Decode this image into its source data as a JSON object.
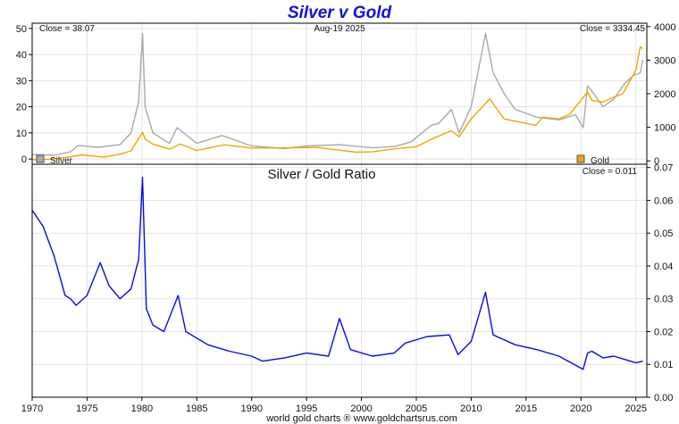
{
  "chart_data": [
    {
      "type": "line",
      "title": "Silver v Gold",
      "date_label": "Aug-19  2025",
      "left_close": "Close = 38.07",
      "right_close": "Close = 3334.45",
      "x_axis": {
        "range": [
          1970,
          2026
        ],
        "ticks": [
          "1970",
          "1975",
          "1980",
          "1985",
          "1990",
          "1995",
          "2000",
          "2005",
          "2010",
          "2015",
          "2020",
          "2025"
        ]
      },
      "y_left": {
        "range": [
          -2,
          52
        ],
        "ticks": [
          "0",
          "10",
          "20",
          "30",
          "40",
          "50"
        ]
      },
      "y_right": {
        "range": [
          -100,
          4100
        ],
        "ticks": [
          "0",
          "1000",
          "2000",
          "3000",
          "4000"
        ]
      },
      "grid": true,
      "legend": {
        "silver_label": "Silver",
        "silver_placement": "bottom-left",
        "gold_label": "Gold",
        "gold_placement": "bottom-right"
      },
      "series": [
        {
          "name": "Silver",
          "axis": "left",
          "color": "#a9a9a9",
          "x": [
            1970,
            1972,
            1973.5,
            1974.2,
            1976,
            1978,
            1979,
            1979.7,
            1980.05,
            1980.3,
            1981,
            1982.5,
            1983.2,
            1985,
            1987.3,
            1990,
            1993,
            1995,
            1998,
            2001,
            2003,
            2004.5,
            2006.4,
            2007,
            2008.2,
            2008.9,
            2010,
            2011.3,
            2012,
            2013,
            2014,
            2016,
            2018,
            2019.5,
            2020.2,
            2020.6,
            2021,
            2022,
            2023,
            2024,
            2024.8,
            2025.4,
            2025.63
          ],
          "values": [
            1.8,
            1.5,
            2.8,
            5.2,
            4.5,
            5.5,
            10,
            22,
            48,
            20,
            10,
            6,
            12,
            6,
            9,
            5,
            4,
            5,
            5.5,
            4.3,
            4.8,
            6.5,
            13,
            13.5,
            19,
            10,
            20,
            48,
            33,
            25,
            19,
            16,
            15,
            17,
            12,
            28,
            26,
            20,
            23,
            29,
            32,
            33,
            38.07
          ]
        },
        {
          "name": "Gold",
          "axis": "right",
          "color": "#f0a500",
          "x": [
            1970,
            1971,
            1972,
            1973.5,
            1974.5,
            1976.5,
            1978,
            1979,
            1980.05,
            1980.3,
            1981,
            1982.5,
            1983.5,
            1985,
            1987.5,
            1990,
            1996,
            1999.5,
            2001,
            2003,
            2005,
            2006.4,
            2008.2,
            2008.9,
            2010,
            2011.7,
            2012,
            2013,
            2015.9,
            2016.5,
            2018,
            2019,
            2020.6,
            2021,
            2022,
            2023,
            2023.8,
            2024.5,
            2025,
            2025.4,
            2025.63
          ],
          "values": [
            36,
            41,
            60,
            120,
            180,
            110,
            200,
            300,
            850,
            650,
            500,
            350,
            500,
            310,
            480,
            380,
            400,
            260,
            270,
            360,
            420,
            650,
            900,
            720,
            1250,
            1850,
            1700,
            1250,
            1060,
            1300,
            1250,
            1400,
            2050,
            1800,
            1750,
            1900,
            2000,
            2400,
            2700,
            3400,
            3334.45
          ]
        }
      ]
    },
    {
      "type": "line",
      "title": "Silver  /  Gold Ratio",
      "close_label": "Close = 0.011",
      "x_axis": {
        "range": [
          1970,
          2026
        ]
      },
      "y_right": {
        "range": [
          0,
          0.071
        ],
        "ticks": [
          "0.00",
          "0.01",
          "0.02",
          "0.03",
          "0.04",
          "0.05",
          "0.06",
          "0.07"
        ]
      },
      "grid": true,
      "series": [
        {
          "name": "Silver / Gold",
          "color": "#0a0ae6",
          "x": [
            1970,
            1971,
            1972,
            1973,
            1973.5,
            1974,
            1975,
            1976.2,
            1977,
            1978,
            1979,
            1979.7,
            1980.05,
            1980.4,
            1981,
            1982,
            1983.3,
            1984,
            1985,
            1986,
            1987,
            1988,
            1990,
            1991,
            1993,
            1995,
            1997,
            1998,
            1999,
            2001,
            2003,
            2004,
            2006,
            2008,
            2008.8,
            2010,
            2011.3,
            2012,
            2014,
            2016,
            2018,
            2020.2,
            2020.6,
            2021,
            2022,
            2023,
            2024,
            2025,
            2025.63
          ],
          "values": [
            0.057,
            0.052,
            0.043,
            0.031,
            0.03,
            0.028,
            0.031,
            0.041,
            0.034,
            0.03,
            0.033,
            0.042,
            0.067,
            0.027,
            0.022,
            0.02,
            0.031,
            0.02,
            0.018,
            0.016,
            0.015,
            0.014,
            0.0125,
            0.011,
            0.012,
            0.0135,
            0.0125,
            0.024,
            0.0145,
            0.0125,
            0.0135,
            0.0165,
            0.0185,
            0.019,
            0.013,
            0.017,
            0.032,
            0.019,
            0.016,
            0.0145,
            0.0125,
            0.0085,
            0.0135,
            0.014,
            0.012,
            0.0125,
            0.0115,
            0.0105,
            0.011
          ]
        }
      ]
    }
  ],
  "footer": "world gold charts ® www.goldchartsrus.com"
}
